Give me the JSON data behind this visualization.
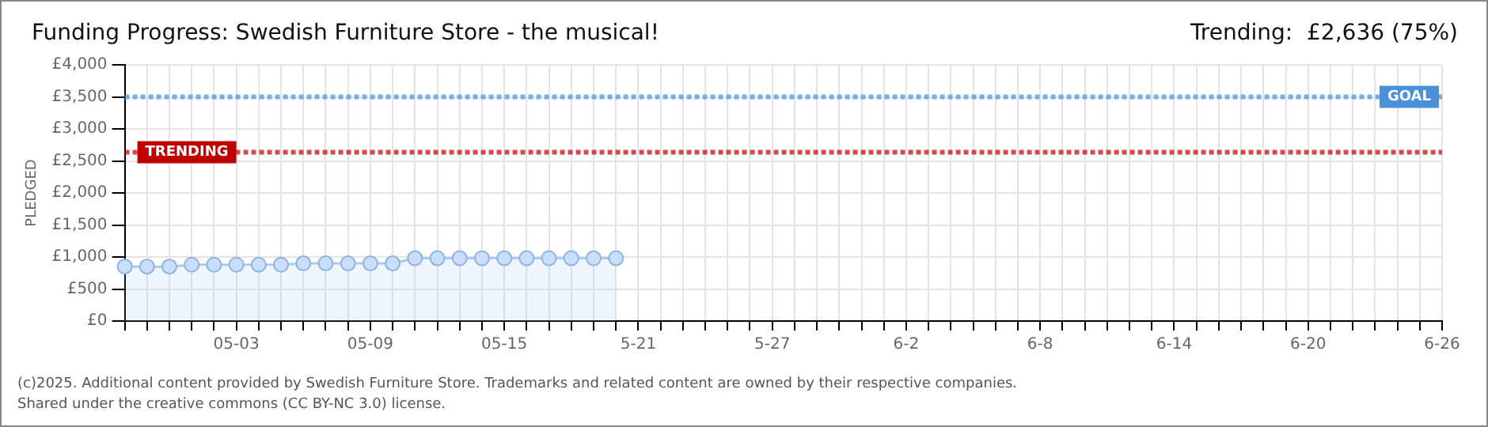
{
  "chart_data": {
    "type": "area",
    "title": "Funding Progress: Swedish Furniture Store - the musical!",
    "subtitle": "Trending:  £2,636 (75%)",
    "ylabel": "PLEDGED",
    "categories": [
      null,
      null,
      null,
      null,
      null,
      "05-03",
      null,
      null,
      null,
      null,
      null,
      "05-09",
      null,
      null,
      null,
      null,
      null,
      "05-15",
      null,
      null,
      null,
      null,
      null,
      "5-21",
      null,
      null,
      null,
      null,
      null,
      "5-27",
      null,
      null,
      null,
      null,
      null,
      "6-2",
      null,
      null,
      null,
      null,
      null,
      "6-8",
      null,
      null,
      null,
      null,
      null,
      "6-14",
      null,
      null,
      null,
      null,
      null,
      "6-20",
      null,
      null,
      null,
      null,
      null,
      "6-26"
    ],
    "series": [
      {
        "color": "#a9cbef",
        "values": [
          850,
          850,
          850,
          880,
          880,
          880,
          880,
          880,
          900,
          900,
          900,
          900,
          900,
          980,
          980,
          980,
          980,
          980,
          980,
          980,
          980,
          980,
          980,
          null,
          null,
          null,
          null,
          null,
          null,
          null,
          null,
          null,
          null,
          null,
          null,
          null,
          null,
          null,
          null,
          null,
          null,
          null,
          null,
          null,
          null,
          null,
          null,
          null,
          null,
          null,
          null,
          null,
          null,
          null,
          null,
          null,
          null,
          null,
          null,
          null
        ]
      }
    ],
    "ylim": [
      0,
      4000
    ],
    "yticks": [
      {
        "value": 0,
        "label": "£0"
      },
      {
        "value": 500,
        "label": "£500"
      },
      {
        "value": 1000,
        "label": "£1,000"
      },
      {
        "value": 1500,
        "label": "£1,500"
      },
      {
        "value": 2000,
        "label": "£2,000"
      },
      {
        "value": 2500,
        "label": "£2,500"
      },
      {
        "value": 3000,
        "label": "£3,000"
      },
      {
        "value": 3500,
        "label": "£3,500"
      },
      {
        "value": 4000,
        "label": "£4,000"
      }
    ],
    "ref_lines": [
      {
        "axis": "y",
        "value": 3500,
        "label": "GOAL",
        "color": "#4a90d9",
        "line_style": "dotted"
      },
      {
        "axis": "y",
        "value": 2636,
        "label": "TRENDING",
        "color": "#c00000",
        "line_style": "dotted"
      }
    ],
    "grid": true,
    "marker": "circle",
    "legend": false,
    "annotations": [
      "(c)2025. Additional content provided by Swedish Furniture Store. Trademarks and related content are owned by their respective companies.",
      "Shared under the creative commons (CC BY-NC 3.0) license."
    ]
  }
}
